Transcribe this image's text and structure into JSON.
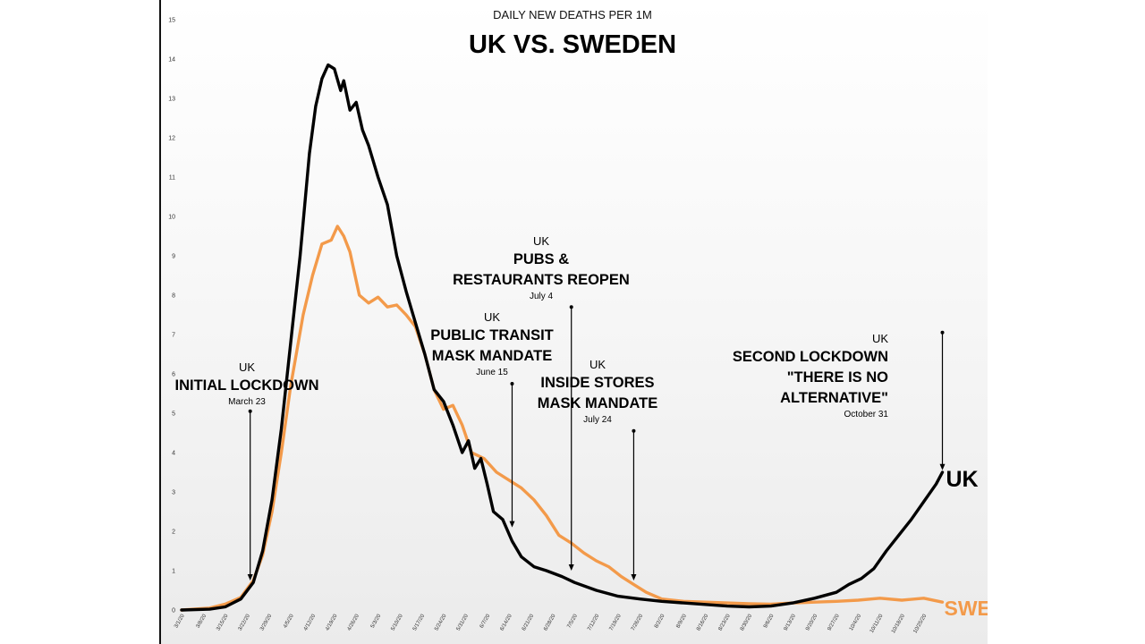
{
  "chart_data": {
    "type": "line",
    "subtitle": "DAILY NEW DEATHS PER 1M",
    "title": "UK VS. SWEDEN",
    "xlabel": "",
    "ylabel": "",
    "ylim": [
      0,
      15
    ],
    "yticks": [
      "0",
      "1",
      "2",
      "3",
      "4",
      "5",
      "6",
      "7",
      "8",
      "9",
      "10",
      "11",
      "12",
      "13",
      "14",
      "15"
    ],
    "grid": false,
    "legend": "none",
    "x_tick_labels": [
      "3/1/20",
      "3/8/20",
      "3/15/20",
      "3/22/20",
      "3/29/20",
      "4/5/20",
      "4/12/20",
      "4/19/20",
      "4/26/20",
      "5/3/20",
      "5/10/20",
      "5/17/20",
      "5/24/20",
      "5/31/20",
      "6/7/20",
      "6/14/20",
      "6/21/20",
      "6/28/20",
      "7/5/20",
      "7/12/20",
      "7/19/20",
      "7/26/20",
      "8/2/20",
      "8/9/20",
      "8/16/20",
      "8/23/20",
      "8/30/20",
      "9/6/20",
      "9/13/20",
      "9/20/20",
      "9/27/20",
      "10/4/20",
      "10/11/20",
      "10/18/20",
      "10/25/20"
    ],
    "series": [
      {
        "name": "UK",
        "label": "UK",
        "color": "#000000",
        "points": [
          [
            "3/1/20",
            0
          ],
          [
            "3/10/20",
            0.02
          ],
          [
            "3/15/20",
            0.08
          ],
          [
            "3/20/20",
            0.28
          ],
          [
            "3/24/20",
            0.7
          ],
          [
            "3/27/20",
            1.5
          ],
          [
            "3/30/20",
            2.8
          ],
          [
            "4/2/20",
            4.6
          ],
          [
            "4/5/20",
            6.8
          ],
          [
            "4/8/20",
            9.0
          ],
          [
            "4/11/20",
            11.6
          ],
          [
            "4/13/20",
            12.8
          ],
          [
            "4/15/20",
            13.5
          ],
          [
            "4/17/20",
            13.85
          ],
          [
            "4/19/20",
            13.75
          ],
          [
            "4/21/20",
            13.2
          ],
          [
            "4/22/20",
            13.45
          ],
          [
            "4/24/20",
            12.7
          ],
          [
            "4/26/20",
            12.9
          ],
          [
            "4/28/20",
            12.2
          ],
          [
            "4/30/20",
            11.8
          ],
          [
            "5/3/20",
            11.0
          ],
          [
            "5/6/20",
            10.3
          ],
          [
            "5/9/20",
            9.0
          ],
          [
            "5/12/20",
            8.1
          ],
          [
            "5/15/20",
            7.3
          ],
          [
            "5/18/20",
            6.5
          ],
          [
            "5/21/20",
            5.6
          ],
          [
            "5/24/20",
            5.3
          ],
          [
            "5/27/20",
            4.7
          ],
          [
            "5/30/20",
            4.0
          ],
          [
            "6/1/20",
            4.3
          ],
          [
            "6/3/20",
            3.6
          ],
          [
            "6/5/20",
            3.85
          ],
          [
            "6/7/20",
            3.2
          ],
          [
            "6/9/20",
            2.5
          ],
          [
            "6/12/20",
            2.3
          ],
          [
            "6/15/20",
            1.75
          ],
          [
            "6/18/20",
            1.35
          ],
          [
            "6/22/20",
            1.1
          ],
          [
            "6/26/20",
            1.0
          ],
          [
            "7/1/20",
            0.85
          ],
          [
            "7/5/20",
            0.7
          ],
          [
            "7/12/20",
            0.5
          ],
          [
            "7/19/20",
            0.35
          ],
          [
            "7/26/20",
            0.28
          ],
          [
            "8/2/20",
            0.22
          ],
          [
            "8/9/20",
            0.18
          ],
          [
            "8/16/20",
            0.14
          ],
          [
            "8/23/20",
            0.1
          ],
          [
            "8/30/20",
            0.08
          ],
          [
            "9/6/20",
            0.1
          ],
          [
            "9/13/20",
            0.18
          ],
          [
            "9/20/20",
            0.3
          ],
          [
            "9/27/20",
            0.45
          ],
          [
            "10/1/20",
            0.65
          ],
          [
            "10/5/20",
            0.8
          ],
          [
            "10/9/20",
            1.05
          ],
          [
            "10/13/20",
            1.5
          ],
          [
            "10/17/20",
            1.9
          ],
          [
            "10/21/20",
            2.3
          ],
          [
            "10/25/20",
            2.75
          ],
          [
            "10/29/20",
            3.2
          ],
          [
            "10/31/20",
            3.5
          ]
        ]
      },
      {
        "name": "SWEDEN",
        "label": "SWEDEN",
        "color": "#f39a4a",
        "points": [
          [
            "3/1/20",
            0
          ],
          [
            "3/10/20",
            0.05
          ],
          [
            "3/15/20",
            0.15
          ],
          [
            "3/20/20",
            0.32
          ],
          [
            "3/24/20",
            0.75
          ],
          [
            "3/27/20",
            1.4
          ],
          [
            "3/30/20",
            2.5
          ],
          [
            "4/2/20",
            4.0
          ],
          [
            "4/5/20",
            5.7
          ],
          [
            "4/9/20",
            7.5
          ],
          [
            "4/12/20",
            8.5
          ],
          [
            "4/15/20",
            9.3
          ],
          [
            "4/18/20",
            9.4
          ],
          [
            "4/20/20",
            9.75
          ],
          [
            "4/22/20",
            9.5
          ],
          [
            "4/24/20",
            9.1
          ],
          [
            "4/27/20",
            8.0
          ],
          [
            "4/30/20",
            7.8
          ],
          [
            "5/3/20",
            7.95
          ],
          [
            "5/6/20",
            7.7
          ],
          [
            "5/9/20",
            7.75
          ],
          [
            "5/12/20",
            7.5
          ],
          [
            "5/15/20",
            7.2
          ],
          [
            "5/18/20",
            6.5
          ],
          [
            "5/21/20",
            5.6
          ],
          [
            "5/24/20",
            5.1
          ],
          [
            "5/27/20",
            5.2
          ],
          [
            "5/30/20",
            4.7
          ],
          [
            "6/2/20",
            4.0
          ],
          [
            "6/6/20",
            3.85
          ],
          [
            "6/10/20",
            3.5
          ],
          [
            "6/14/20",
            3.3
          ],
          [
            "6/18/20",
            3.1
          ],
          [
            "6/22/20",
            2.8
          ],
          [
            "6/26/20",
            2.4
          ],
          [
            "6/30/20",
            1.9
          ],
          [
            "7/4/20",
            1.7
          ],
          [
            "7/8/20",
            1.45
          ],
          [
            "7/12/20",
            1.25
          ],
          [
            "7/16/20",
            1.1
          ],
          [
            "7/20/20",
            0.85
          ],
          [
            "7/24/20",
            0.65
          ],
          [
            "7/28/20",
            0.45
          ],
          [
            "8/2/20",
            0.28
          ],
          [
            "8/9/20",
            0.22
          ],
          [
            "8/16/20",
            0.2
          ],
          [
            "8/23/20",
            0.18
          ],
          [
            "8/30/20",
            0.16
          ],
          [
            "9/6/20",
            0.15
          ],
          [
            "9/13/20",
            0.18
          ],
          [
            "9/20/20",
            0.2
          ],
          [
            "9/27/20",
            0.22
          ],
          [
            "10/4/20",
            0.25
          ],
          [
            "10/11/20",
            0.3
          ],
          [
            "10/18/20",
            0.25
          ],
          [
            "10/25/20",
            0.3
          ],
          [
            "10/31/20",
            0.2
          ]
        ]
      }
    ],
    "annotations": [
      {
        "id": "initial-lockdown",
        "country": "UK",
        "lines": [
          "INITIAL LOCKDOWN"
        ],
        "date": "March 23",
        "x": "3/23/20",
        "y_from": 5.05,
        "y_to": 0.75
      },
      {
        "id": "public-transit",
        "country": "UK",
        "lines": [
          "PUBLIC TRANSIT",
          "MASK MANDATE"
        ],
        "date": "June 15",
        "x": "6/15/20",
        "y_from": 5.75,
        "y_to": 2.1
      },
      {
        "id": "pubs-reopen",
        "country": "UK",
        "lines": [
          "PUBS &",
          "RESTAURANTS REOPEN"
        ],
        "date": "July 4",
        "x": "7/4/20",
        "y_from": 7.7,
        "y_to": 1.0
      },
      {
        "id": "inside-stores",
        "country": "UK",
        "lines": [
          "INSIDE STORES",
          "MASK MANDATE"
        ],
        "date": "July 24",
        "x": "7/24/20",
        "y_from": 4.55,
        "y_to": 0.75
      },
      {
        "id": "second-lockdown",
        "country": "UK",
        "lines": [
          "SECOND LOCKDOWN",
          "\"THERE IS NO",
          "ALTERNATIVE\""
        ],
        "date": "October 31",
        "x": "10/31/20",
        "y_from": 7.05,
        "y_to": 3.55
      }
    ]
  }
}
